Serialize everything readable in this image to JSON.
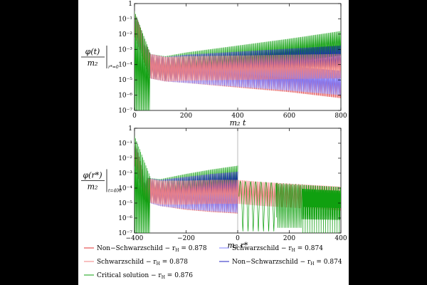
{
  "chart_data": [
    {
      "type": "line",
      "panel": "top",
      "xlabel": "m₂ t",
      "ylabel_num": "φ(t)",
      "ylabel_den": "m₂",
      "ylabel_sub": "r*=0",
      "xlim": [
        0,
        800
      ],
      "ylim_log10": [
        -7,
        0
      ],
      "log_y": true,
      "x_ticks": [
        "0",
        "200",
        "400",
        "600",
        "800"
      ],
      "y_ticks": [
        "1",
        "10⁻¹",
        "10⁻²",
        "10⁻³",
        "10⁻⁴",
        "10⁻⁵",
        "10⁻⁶",
        "10⁻⁷"
      ],
      "series": [
        {
          "ref": 0,
          "envelope_x": [
            0,
            60,
            120,
            200,
            400,
            600,
            800
          ],
          "envelope_log10_y": [
            -0.5,
            -3.3,
            -3.5,
            -3.6,
            -3.9,
            -4.2,
            -4.6
          ]
        },
        {
          "ref": 1,
          "envelope_x": [
            0,
            60,
            120,
            200,
            400,
            600,
            800
          ],
          "envelope_log10_y": [
            -0.5,
            -3.3,
            -3.5,
            -3.6,
            -3.85,
            -4.1,
            -4.4
          ]
        },
        {
          "ref": 2,
          "envelope_x": [
            0,
            60,
            120,
            200,
            400,
            600,
            800
          ],
          "envelope_log10_y": [
            -0.5,
            -3.3,
            -3.5,
            -3.45,
            -3.4,
            -3.35,
            -3.3
          ]
        },
        {
          "ref": 3,
          "envelope_x": [
            0,
            60,
            120,
            200,
            400,
            600,
            800
          ],
          "envelope_log10_y": [
            -0.5,
            -3.3,
            -3.5,
            -3.35,
            -3.15,
            -2.95,
            -2.75
          ]
        },
        {
          "ref": 4,
          "envelope_x": [
            0,
            60,
            120,
            200,
            400,
            600,
            800
          ],
          "envelope_log10_y": [
            -0.5,
            -3.3,
            -3.45,
            -3.2,
            -2.75,
            -2.3,
            -1.8
          ]
        }
      ]
    },
    {
      "type": "line",
      "panel": "bottom",
      "xlabel": "m₂ r*",
      "ylabel_num": "φ(r*)",
      "ylabel_den": "m₂",
      "ylabel_sub": "t=400",
      "xlim": [
        -400,
        400
      ],
      "ylim_log10": [
        -7,
        0
      ],
      "log_y": true,
      "x_ticks": [
        "−400",
        "−200",
        "0",
        "200",
        "400"
      ],
      "y_ticks": [
        "1",
        "10⁻¹",
        "10⁻²",
        "10⁻³",
        "10⁻⁴",
        "10⁻⁵",
        "10⁻⁶",
        "10⁻⁷"
      ],
      "series": [
        {
          "ref": 0,
          "envelope_x": [
            -400,
            -360,
            -300,
            -200,
            -100,
            0
          ],
          "envelope_log10_y": [
            -0.8,
            -3.3,
            -3.6,
            -3.85,
            -4.0,
            -4.1
          ]
        },
        {
          "ref": 1,
          "envelope_x": [
            -400,
            -360,
            -300,
            -200,
            -100,
            0
          ],
          "envelope_log10_y": [
            -0.8,
            -3.3,
            -3.6,
            -3.8,
            -3.95,
            -4.05
          ]
        },
        {
          "ref": 2,
          "envelope_x": [
            -400,
            -360,
            -300,
            -200,
            -100,
            0,
            100,
            200,
            300,
            400
          ],
          "envelope_log10_y": [
            -0.8,
            -3.3,
            -3.5,
            -3.5,
            -3.45,
            -3.45,
            -3.6,
            -3.7,
            -3.8,
            -3.9
          ]
        },
        {
          "ref": 3,
          "envelope_x": [
            -400,
            -360,
            -300,
            -200,
            -100,
            0
          ],
          "envelope_log10_y": [
            -0.8,
            -3.3,
            -3.45,
            -3.25,
            -3.05,
            -2.9
          ]
        },
        {
          "ref": 4,
          "envelope_x": [
            -400,
            -360,
            -300,
            -200,
            -100,
            0
          ],
          "envelope_log10_y": [
            -0.8,
            -3.3,
            -3.4,
            -3.05,
            -2.75,
            -2.5
          ]
        }
      ]
    }
  ],
  "legend": [
    {
      "text": "Non−Schwarzschild − r",
      "sub": "H",
      "value": " = 0.878",
      "color": "#e03030"
    },
    {
      "text": "Schwarzschild − r",
      "sub": "H",
      "value": " = 0.874",
      "color": "#8080ff"
    },
    {
      "text": "Schwarzschild − r",
      "sub": "H",
      "value": " = 0.878",
      "color": "#f08080"
    },
    {
      "text": "Non−Schwarzschild − r",
      "sub": "H",
      "value": " = 0.874",
      "color": "#2020c0"
    },
    {
      "text": "Critical solution − r",
      "sub": "H",
      "value": " = 0.876",
      "color": "#10a010"
    }
  ]
}
